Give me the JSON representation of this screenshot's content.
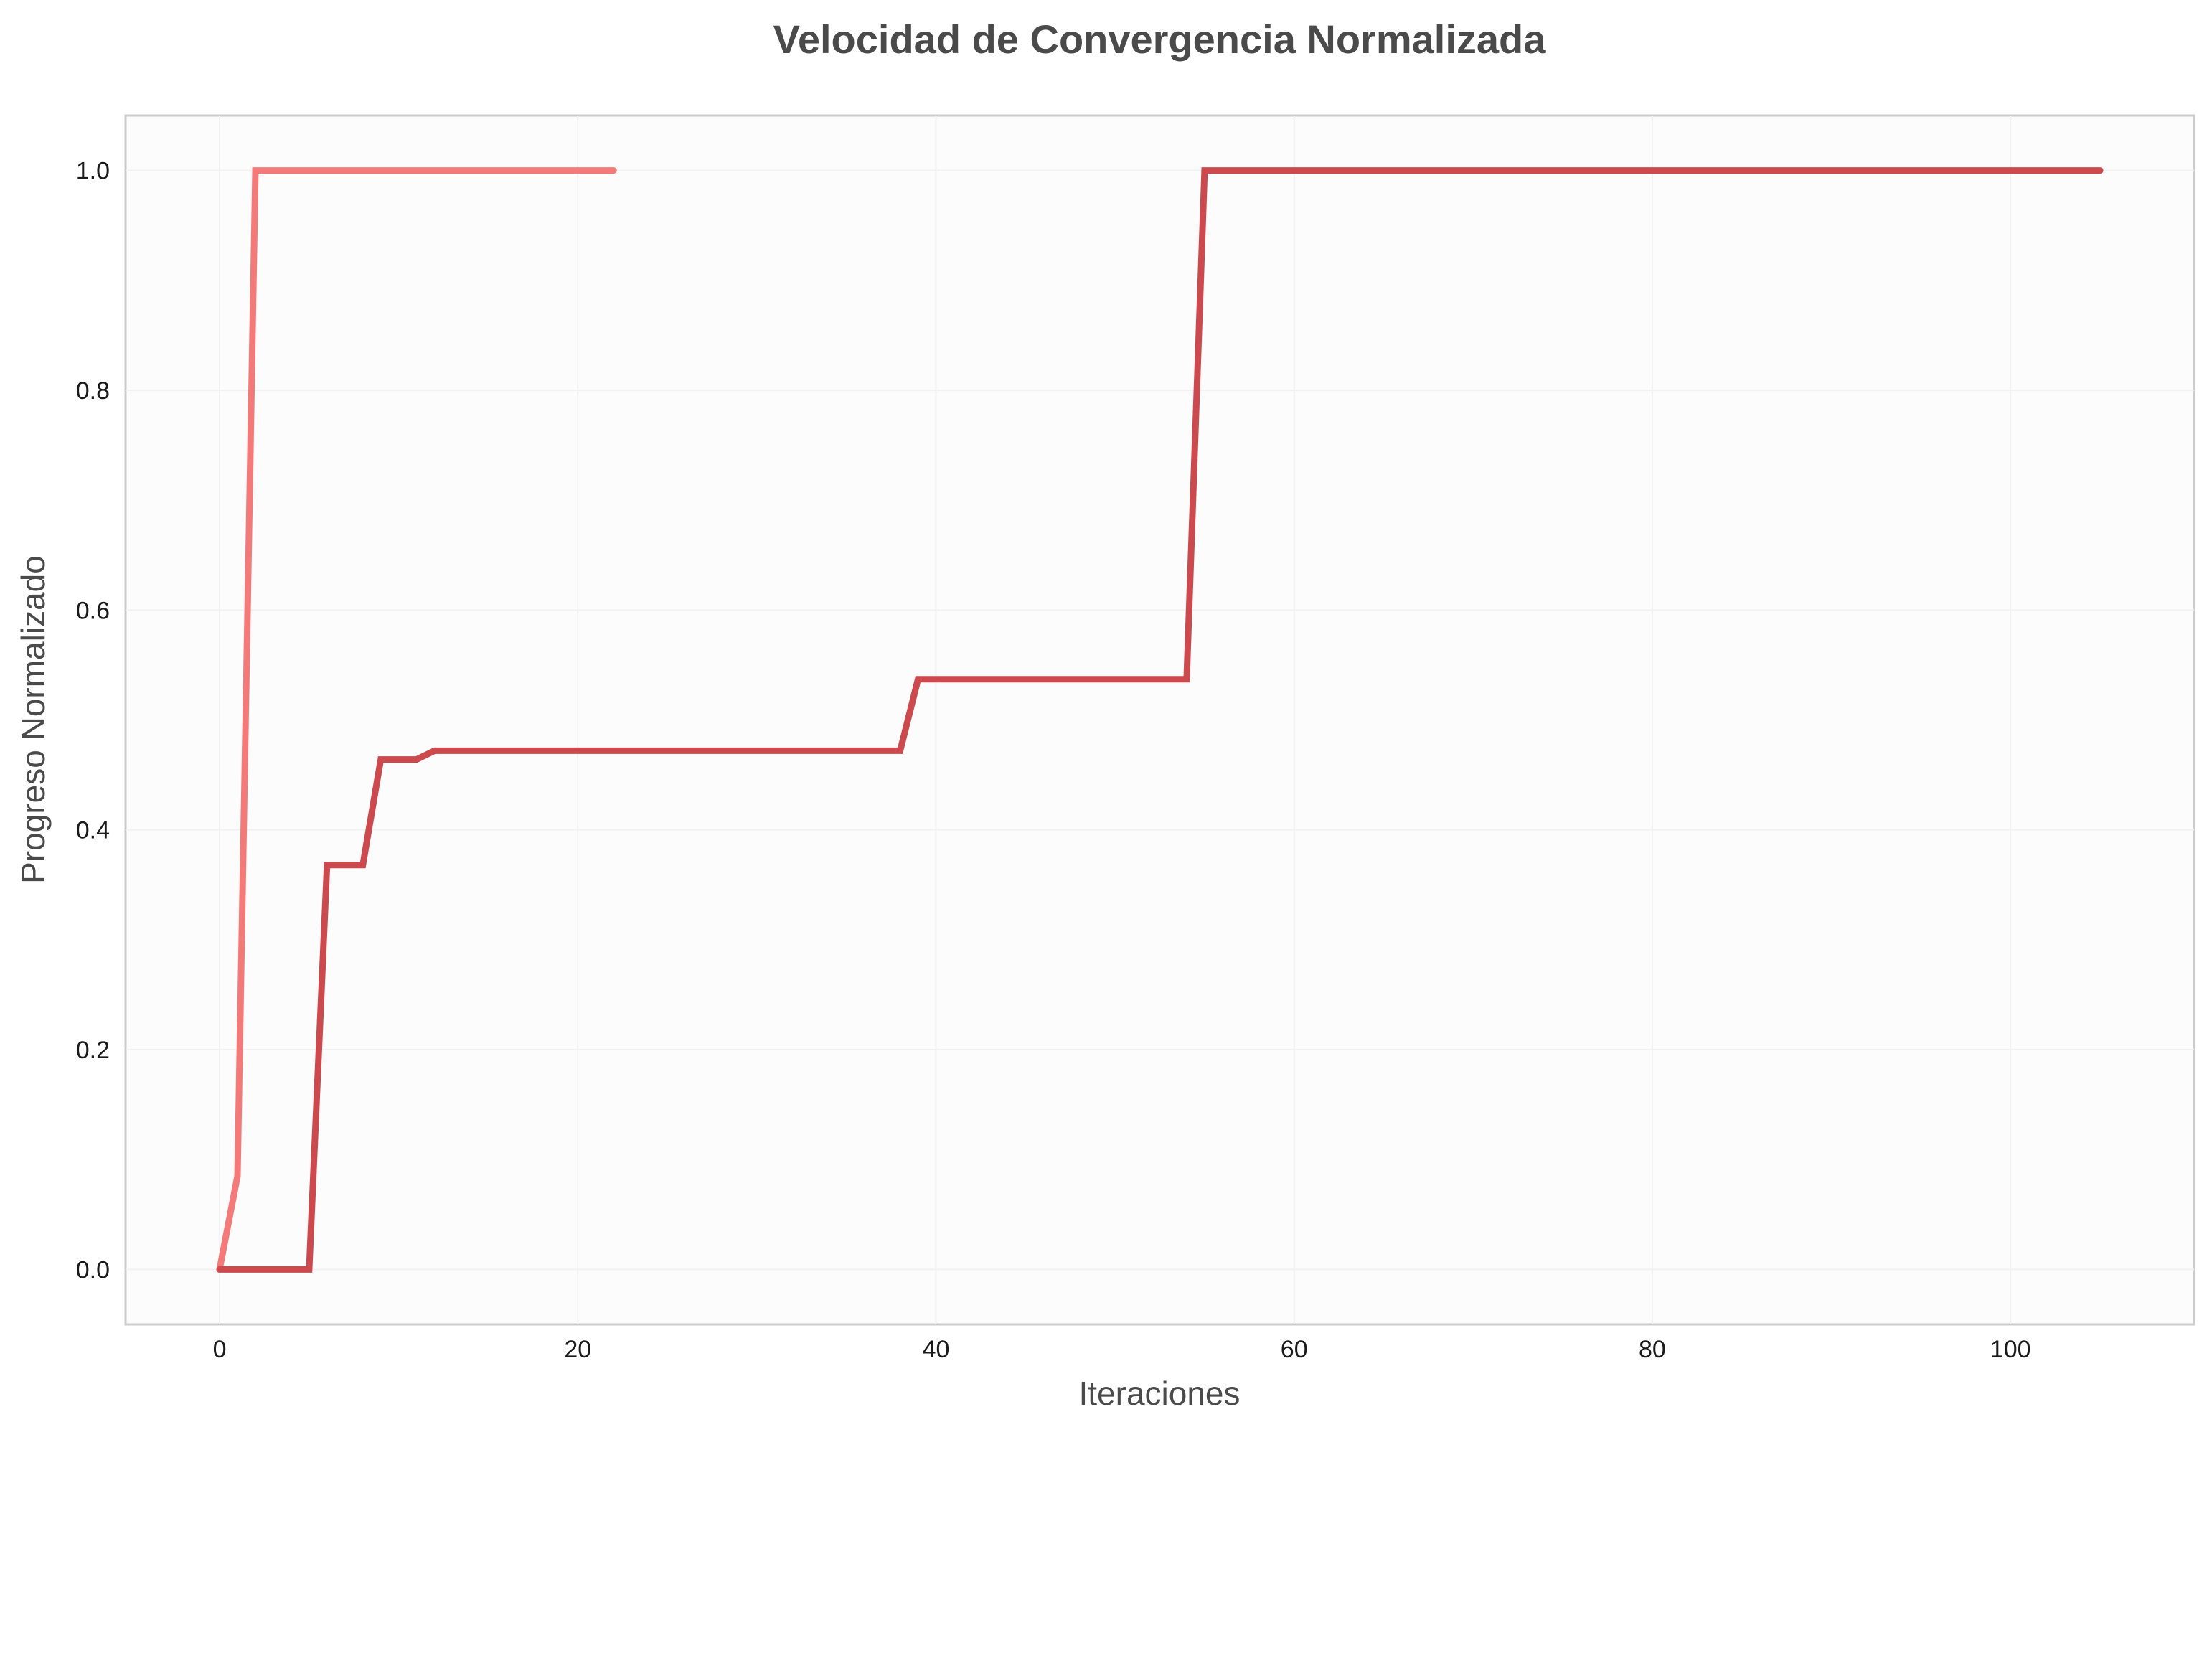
{
  "chart_data": {
    "type": "line",
    "title": "Velocidad de Convergencia Normalizada",
    "xlabel": "Iteraciones",
    "ylabel": "Progreso Normalizado",
    "xlim": [
      -5.25,
      110.25
    ],
    "ylim": [
      -0.05,
      1.05
    ],
    "xticks": [
      0,
      20,
      40,
      60,
      80,
      100
    ],
    "yticks": [
      0.0,
      0.2,
      0.4,
      0.6,
      0.8,
      1.0
    ],
    "xtick_labels": [
      "0",
      "20",
      "40",
      "60",
      "80",
      "100"
    ],
    "ytick_labels": [
      "0.0",
      "0.2",
      "0.4",
      "0.6",
      "0.8",
      "1.0"
    ],
    "grid": true,
    "legend": "none",
    "series": [
      {
        "color": "#f47a7a",
        "x": [
          0,
          1,
          2,
          3,
          4,
          5,
          6,
          7,
          8,
          9,
          10,
          11,
          12,
          13,
          14,
          15,
          16,
          17,
          18,
          19,
          20,
          21,
          22
        ],
        "y": [
          0.0,
          0.085,
          1.0,
          1.0,
          1.0,
          1.0,
          1.0,
          1.0,
          1.0,
          1.0,
          1.0,
          1.0,
          1.0,
          1.0,
          1.0,
          1.0,
          1.0,
          1.0,
          1.0,
          1.0,
          1.0,
          1.0,
          1.0
        ]
      },
      {
        "color": "#cc4a4d",
        "x": [
          0,
          5,
          6,
          8,
          9,
          11,
          12,
          38,
          39,
          54,
          55,
          105
        ],
        "y": [
          0.0,
          0.0,
          0.368,
          0.368,
          0.464,
          0.464,
          0.472,
          0.472,
          0.537,
          0.537,
          1.0,
          1.0
        ]
      }
    ]
  }
}
